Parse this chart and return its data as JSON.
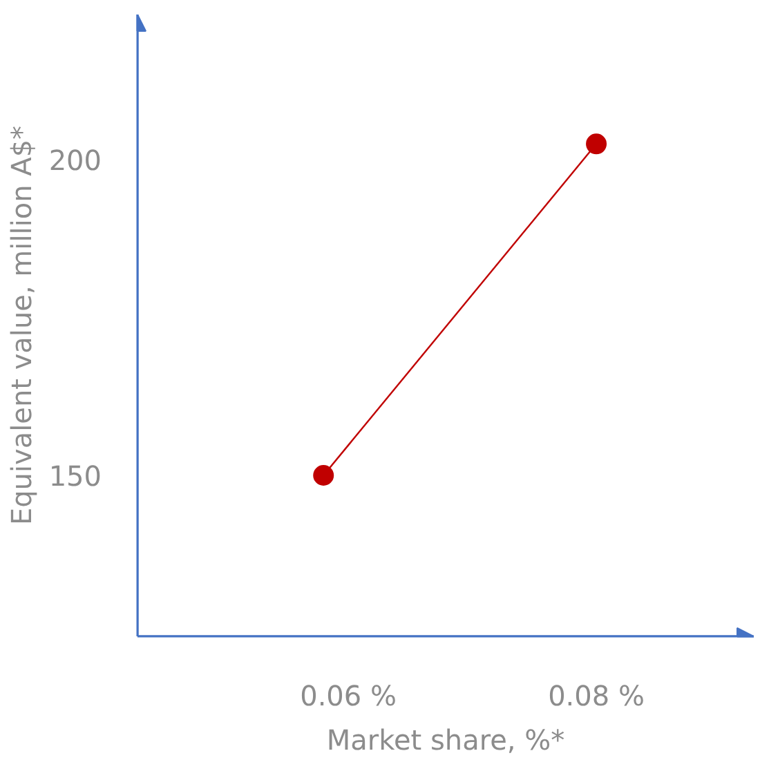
{
  "chart_data": {
    "type": "line",
    "xlabel": "Market share, %*",
    "ylabel": "Equivalent value, million A$*",
    "x": [
      0.058,
      0.08
    ],
    "series": [
      {
        "color": "#c00000",
        "values": [
          150,
          202.5
        ]
      }
    ],
    "xlim": [
      0.043,
      0.0927
    ],
    "ylim": [
      124.5,
      223
    ],
    "xticks": [
      {
        "value": 0.06,
        "label": "0.06 %"
      },
      {
        "value": 0.08,
        "label": "0.08 %"
      }
    ],
    "yticks": [
      150,
      200
    ],
    "marker": "circle",
    "line_style": "solid",
    "grid": false
  }
}
